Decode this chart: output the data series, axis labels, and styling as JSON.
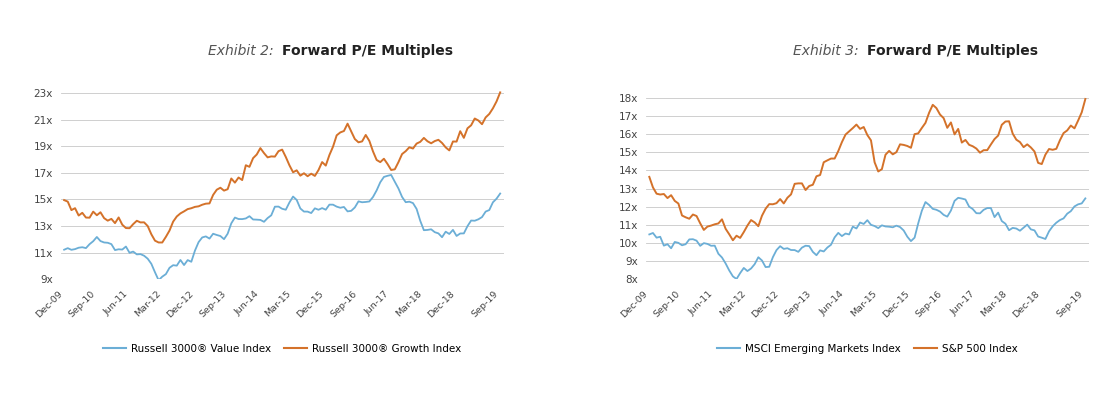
{
  "chart1": {
    "title_italic": "Exhibit 2:",
    "title_bold": "Forward P/E Multiples",
    "ylim": [
      9,
      24
    ],
    "yticks": [
      9,
      11,
      13,
      15,
      17,
      19,
      21,
      23
    ],
    "color_blue": "#6BAED6",
    "color_orange": "#D4722A",
    "legend": [
      "Russell 3000® Value Index",
      "Russell 3000® Growth Index"
    ],
    "xtick_labels": [
      "Dec-09",
      "Sep-10",
      "Jun-11",
      "Mar-12",
      "Dec-12",
      "Sep-13",
      "Jun-14",
      "Mar-15",
      "Dec-15",
      "Sep-16",
      "Jun-17",
      "Mar-18",
      "Dec-18",
      "Sep-19"
    ]
  },
  "chart2": {
    "title_italic": "Exhibit 3:",
    "title_bold": "Forward P/E Multiples",
    "ylim": [
      8,
      19
    ],
    "yticks": [
      8,
      9,
      10,
      11,
      12,
      13,
      14,
      15,
      16,
      17,
      18
    ],
    "color_blue": "#6BAED6",
    "color_orange": "#D4722A",
    "legend": [
      "MSCI Emerging Markets Index",
      "S&P 500 Index"
    ],
    "xtick_labels": [
      "Dec-09",
      "Sep-10",
      "Jun-11",
      "Mar-12",
      "Dec-12",
      "Sep-13",
      "Jun-14",
      "Mar-15",
      "Dec-15",
      "Sep-16",
      "Jun-17",
      "Mar-18",
      "Dec-18",
      "Sep-19"
    ]
  },
  "background_color": "#FFFFFF",
  "grid_color": "#C8C8C8",
  "text_color": "#444444"
}
